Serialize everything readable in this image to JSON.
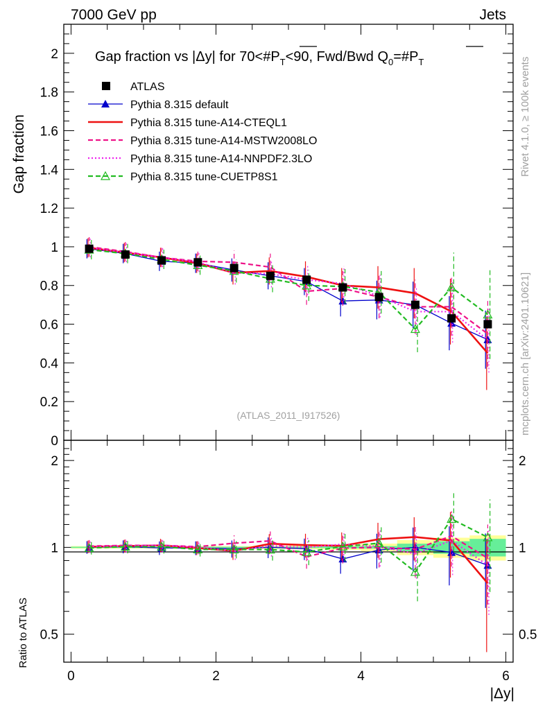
{
  "chart_data": {
    "type": "line",
    "header_left": "7000 GeV pp",
    "header_right": "Jets",
    "title": "Gap fraction vs |Δy| for 70<#P_T<90, Fwd/Bwd Q_0=#P_T",
    "title_parts": {
      "prefix": "Gap fraction vs |Δy| for 70<#",
      "p": "P",
      "t": "T",
      "mid": "<90, Fwd/Bwd Q",
      "zero": "0",
      "eq": "=#"
    },
    "ylabel": "Gap fraction",
    "ratio_ylabel": "Ratio to ATLAS",
    "xlabel": "|Δy|",
    "watermark": "(ATLAS_2011_I917526)",
    "side_text_top": "Rivet 4.1.0, ≥ 100k events",
    "side_text_bottom": "mcplots.cern.ch [arXiv:2401.10621]",
    "xlim": [
      -0.1,
      6.1
    ],
    "ylim": [
      0,
      2.15
    ],
    "ratio_ylim": [
      0.4,
      2.35
    ],
    "x_ticks": [
      0,
      2,
      4,
      6
    ],
    "y_ticks": [
      0,
      0.2,
      0.4,
      0.6,
      0.8,
      1,
      1.2,
      1.4,
      1.6,
      1.8,
      2
    ],
    "y_tick_labels": [
      "0",
      "0.2",
      "0.4",
      "0.6",
      "0.8",
      "1",
      "1.2",
      "1.4",
      "1.6",
      "1.8",
      "2"
    ],
    "ratio_ticks": [
      0.5,
      1,
      2
    ],
    "ratio_tick_labels": [
      "0.5",
      "1",
      "2"
    ],
    "x": [
      0.25,
      0.75,
      1.25,
      1.75,
      2.25,
      2.75,
      3.25,
      3.75,
      4.25,
      4.75,
      5.25,
      5.75
    ],
    "data": {
      "name": "ATLAS",
      "values": [
        0.99,
        0.96,
        0.93,
        0.92,
        0.89,
        0.85,
        0.83,
        0.79,
        0.74,
        0.7,
        0.63,
        0.6
      ],
      "band_inner": [
        0.005,
        0.005,
        0.005,
        0.005,
        0.005,
        0.005,
        0.006,
        0.008,
        0.01,
        0.03,
        0.05,
        0.07
      ],
      "band_outer": [
        0.01,
        0.01,
        0.01,
        0.01,
        0.01,
        0.012,
        0.015,
        0.02,
        0.03,
        0.06,
        0.08,
        0.1
      ]
    },
    "series": [
      {
        "name": "Pythia 8.315 default",
        "color": "#0000cc",
        "style": "solid",
        "marker": "filled-triangle",
        "values": [
          0.99,
          0.965,
          0.925,
          0.915,
          0.88,
          0.85,
          0.82,
          0.72,
          0.725,
          0.7,
          0.605,
          0.52
        ],
        "errors": [
          0.05,
          0.05,
          0.05,
          0.05,
          0.06,
          0.07,
          0.07,
          0.08,
          0.1,
          0.12,
          0.14,
          0.15
        ]
      },
      {
        "name": "Pythia 8.315 tune-A14-CTEQL1",
        "color": "#ee1111",
        "style": "solid",
        "marker": "none",
        "values": [
          0.995,
          0.97,
          0.945,
          0.915,
          0.865,
          0.875,
          0.845,
          0.8,
          0.79,
          0.76,
          0.665,
          0.45
        ],
        "errors": [
          0.05,
          0.05,
          0.05,
          0.05,
          0.06,
          0.07,
          0.08,
          0.09,
          0.11,
          0.13,
          0.17,
          0.19
        ]
      },
      {
        "name": "Pythia 8.315 tune-A14-MSTW2008LO",
        "color": "#ee1188",
        "style": "dashed",
        "marker": "none",
        "values": [
          1.0,
          0.975,
          0.945,
          0.925,
          0.92,
          0.895,
          0.77,
          0.785,
          0.74,
          0.69,
          0.69,
          0.55
        ],
        "errors": [
          0.05,
          0.05,
          0.05,
          0.05,
          0.06,
          0.07,
          0.07,
          0.09,
          0.11,
          0.14,
          0.15,
          0.17
        ]
      },
      {
        "name": "Pythia 8.315 tune-A14-NNPDF2.3LO",
        "color": "#ee22ee",
        "style": "dotted",
        "marker": "none",
        "values": [
          0.995,
          0.97,
          0.945,
          0.92,
          0.865,
          0.86,
          0.83,
          0.81,
          0.745,
          0.665,
          0.665,
          0.52
        ],
        "errors": [
          0.05,
          0.05,
          0.05,
          0.05,
          0.06,
          0.07,
          0.08,
          0.09,
          0.11,
          0.12,
          0.16,
          0.17
        ]
      },
      {
        "name": "Pythia 8.315 tune-CUETP8S1",
        "color": "#22bb22",
        "style": "dashed",
        "marker": "open-triangle",
        "values": [
          0.985,
          0.965,
          0.935,
          0.905,
          0.875,
          0.835,
          0.8,
          0.795,
          0.765,
          0.575,
          0.79,
          0.65
        ],
        "errors": [
          0.05,
          0.05,
          0.05,
          0.05,
          0.06,
          0.07,
          0.08,
          0.09,
          0.11,
          0.12,
          0.18,
          0.23
        ]
      }
    ]
  }
}
